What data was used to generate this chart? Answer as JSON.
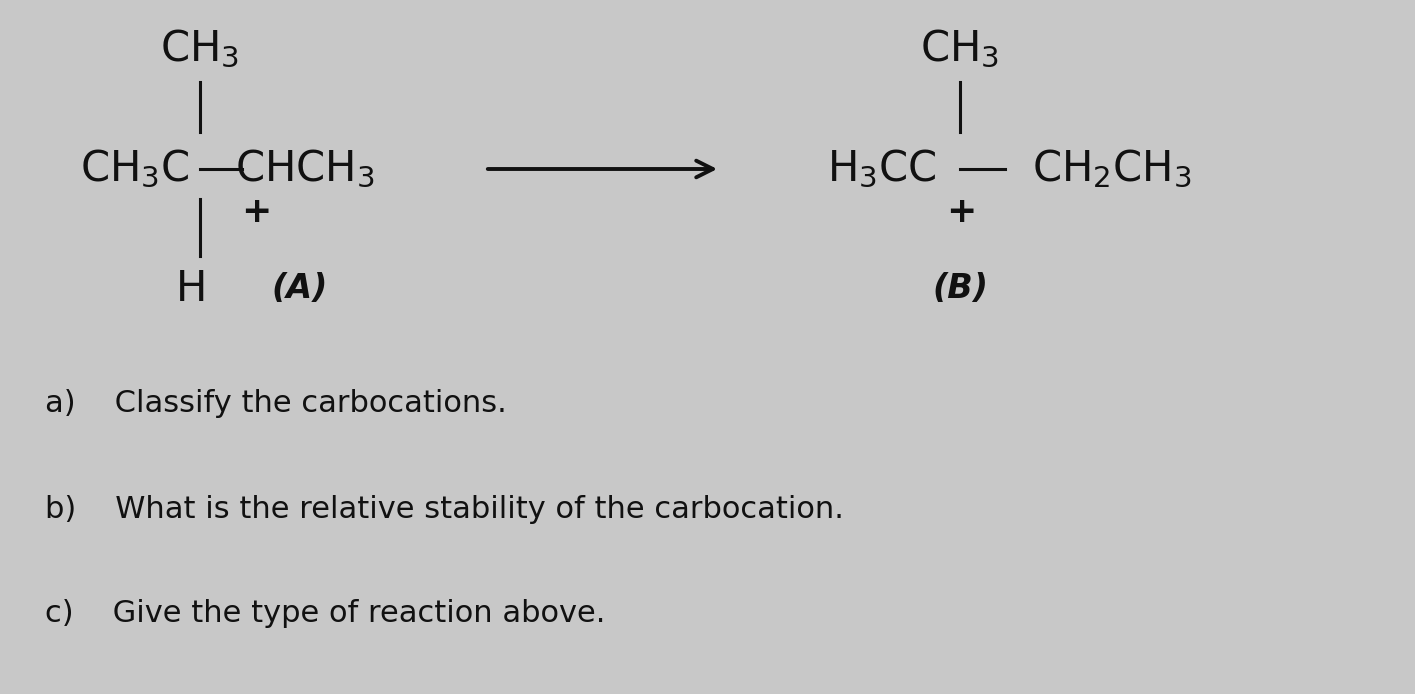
{
  "bg_color": "#c8c8c8",
  "text_color": "#111111",
  "font_size_chem": 30,
  "font_size_label": 24,
  "font_size_questions": 22,
  "questions": [
    "a)    Classify the carbocations.",
    "b)    What is the relative stability of the carbocation.",
    "c)    Give the type of reaction above."
  ],
  "label_A": "(A)",
  "label_B": "(B)"
}
